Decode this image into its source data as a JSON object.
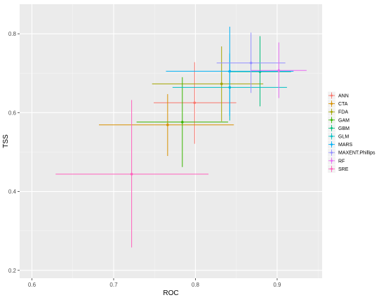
{
  "chart_data": {
    "type": "scatter",
    "title": "",
    "xlabel": "ROC",
    "ylabel": "TSS",
    "xlim": [
      0.585,
      0.955
    ],
    "ylim": [
      0.18,
      0.875
    ],
    "x_ticks": [
      0.6,
      0.7,
      0.8,
      0.9
    ],
    "x_tick_labels": [
      "0.6",
      "0.7",
      "0.8",
      "0.9"
    ],
    "y_ticks": [
      0.2,
      0.4,
      0.6,
      0.8
    ],
    "y_tick_labels": [
      "0.2",
      "0.4",
      "0.6",
      "0.8"
    ],
    "grid": true,
    "legend_position": "right",
    "series": [
      {
        "name": "ANN",
        "color": "#F8766D",
        "x": 0.799,
        "y": 0.625,
        "x_err": [
          0.749,
          0.85
        ],
        "y_err": [
          0.521,
          0.728
        ]
      },
      {
        "name": "CTA",
        "color": "#D89000",
        "x": 0.766,
        "y": 0.569,
        "x_err": [
          0.682,
          0.847
        ],
        "y_err": [
          0.49,
          0.647
        ]
      },
      {
        "name": "FDA",
        "color": "#A3A500",
        "x": 0.832,
        "y": 0.673,
        "x_err": [
          0.747,
          0.883
        ],
        "y_err": [
          0.578,
          0.768
        ]
      },
      {
        "name": "GAM",
        "color": "#39B600",
        "x": 0.784,
        "y": 0.576,
        "x_err": [
          0.728,
          0.84
        ],
        "y_err": [
          0.462,
          0.69
        ]
      },
      {
        "name": "GBM",
        "color": "#00BF7D",
        "x": 0.879,
        "y": 0.704,
        "x_err": [
          0.84,
          0.917
        ],
        "y_err": [
          0.616,
          0.794
        ]
      },
      {
        "name": "GLM",
        "color": "#00BFC4",
        "x": 0.842,
        "y": 0.664,
        "x_err": [
          0.772,
          0.912
        ],
        "y_err": [
          0.58,
          0.75
        ]
      },
      {
        "name": "MARS",
        "color": "#00B0F6",
        "x": 0.842,
        "y": 0.705,
        "x_err": [
          0.764,
          0.92
        ],
        "y_err": [
          0.592,
          0.818
        ]
      },
      {
        "name": "MAXENT.Phillips",
        "color": "#9590FF",
        "x": 0.868,
        "y": 0.726,
        "x_err": [
          0.826,
          0.91
        ],
        "y_err": [
          0.65,
          0.803
        ]
      },
      {
        "name": "RF",
        "color": "#E76BF3",
        "x": 0.902,
        "y": 0.707,
        "x_err": [
          0.868,
          0.936
        ],
        "y_err": [
          0.637,
          0.778
        ]
      },
      {
        "name": "SRE",
        "color": "#FF62BC",
        "x": 0.722,
        "y": 0.444,
        "x_err": [
          0.629,
          0.816
        ],
        "y_err": [
          0.258,
          0.632
        ]
      }
    ]
  }
}
